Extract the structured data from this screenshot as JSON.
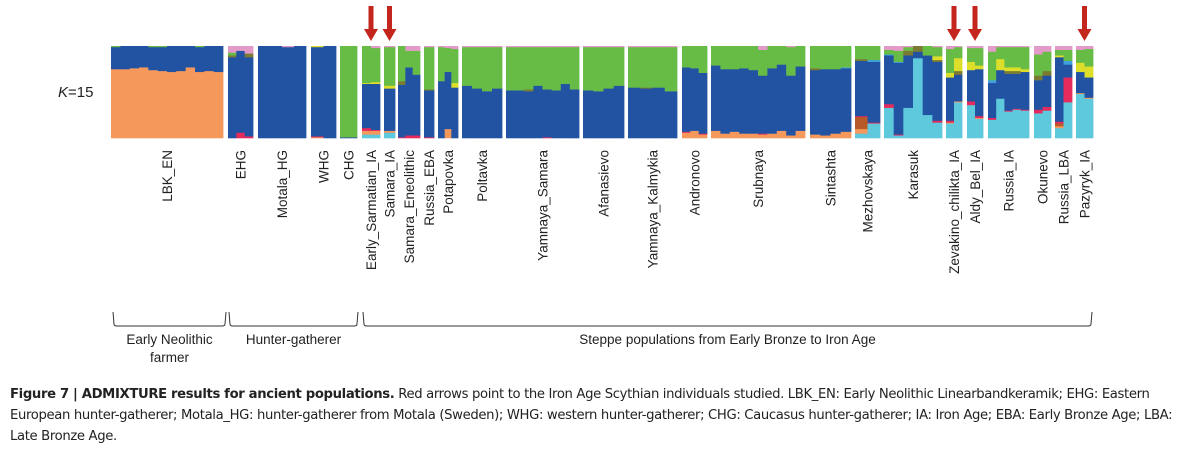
{
  "chart_data": {
    "type": "bar",
    "subtype": "stacked-admixture",
    "k_label_prefix": "K",
    "k_label_suffix": "=15",
    "k": 15,
    "ylim": [
      0,
      1
    ],
    "component_colors": {
      "orange": "#f5985c",
      "blue": "#2253a3",
      "green": "#67bc45",
      "pink": "#e29ac8",
      "olive": "#7a7a32",
      "yellow": "#dcde2a",
      "red": "#e52a5c",
      "cyan": "#5ec8dc",
      "brown": "#b85a28",
      "lightblue": "#3fa0e0"
    },
    "component_order": [
      "cyan",
      "orange",
      "brown",
      "red",
      "blue",
      "olive",
      "yellow",
      "green",
      "pink"
    ],
    "arrow_color": "#c4261d",
    "populations": [
      {
        "name": "LBK_EN",
        "arrow": false,
        "individuals": [
          {
            "orange": 0.75,
            "blue": 0.24,
            "green": 0.01
          },
          {
            "orange": 0.75,
            "blue": 0.25
          },
          {
            "orange": 0.76,
            "blue": 0.24
          },
          {
            "orange": 0.77,
            "blue": 0.23
          },
          {
            "orange": 0.74,
            "blue": 0.25,
            "green": 0.01
          },
          {
            "orange": 0.73,
            "blue": 0.26,
            "green": 0.01
          },
          {
            "orange": 0.72,
            "blue": 0.28
          },
          {
            "orange": 0.73,
            "blue": 0.27
          },
          {
            "orange": 0.77,
            "blue": 0.23
          },
          {
            "orange": 0.72,
            "blue": 0.27,
            "green": 0.01
          },
          {
            "orange": 0.73,
            "blue": 0.27
          },
          {
            "orange": 0.72,
            "blue": 0.28
          }
        ]
      },
      {
        "name": "EHG",
        "arrow": false,
        "individuals": [
          {
            "red": 0.0,
            "blue": 0.88,
            "olive": 0.02,
            "green": 0.03,
            "pink": 0.07
          },
          {
            "red": 0.06,
            "blue": 0.89,
            "pink": 0.05
          },
          {
            "red": 0.02,
            "blue": 0.86,
            "olive": 0.04,
            "pink": 0.08
          }
        ]
      },
      {
        "name": "Motala_HG",
        "arrow": false,
        "individuals": [
          {
            "blue": 1.0
          },
          {
            "blue": 1.0
          },
          {
            "blue": 0.99,
            "pink": 0.01
          },
          {
            "blue": 1.0
          }
        ]
      },
      {
        "name": "WHG",
        "arrow": false,
        "individuals": [
          {
            "red": 0.01,
            "yellow": 0.01,
            "orange": 0.01,
            "blue": 0.97
          },
          {
            "blue": 1.0
          }
        ]
      },
      {
        "name": "CHG",
        "arrow": false,
        "individuals": [
          {
            "blue": 0.01,
            "green": 0.99
          },
          {
            "blue": 0.01,
            "green": 0.99
          }
        ]
      },
      {
        "name": "Early_Sarmatian_IA",
        "arrow": true,
        "individuals": [
          {
            "cyan": 0.04,
            "orange": 0.04,
            "red": 0.03,
            "blue": 0.48,
            "yellow": 0.01,
            "green": 0.4
          },
          {
            "cyan": 0.04,
            "orange": 0.04,
            "red": 0.01,
            "blue": 0.5,
            "yellow": 0.02,
            "green": 0.37,
            "pink": 0.02
          }
        ]
      },
      {
        "name": "Samara_IA",
        "arrow": true,
        "individuals": [
          {
            "cyan": 0.06,
            "orange": 0.02,
            "blue": 0.46,
            "yellow": 0.03,
            "green": 0.42,
            "pink": 0.01
          }
        ]
      },
      {
        "name": "Samara_Eneolithic",
        "arrow": false,
        "individuals": [
          {
            "red": 0.01,
            "blue": 0.57,
            "olive": 0.04,
            "green": 0.38
          },
          {
            "red": 0.03,
            "blue": 0.74,
            "green": 0.18,
            "pink": 0.05
          },
          {
            "red": 0.03,
            "blue": 0.66,
            "green": 0.26,
            "pink": 0.05
          }
        ]
      },
      {
        "name": "Russia_EBA",
        "arrow": false,
        "individuals": [
          {
            "red": 0.01,
            "blue": 0.51,
            "olive": 0.01,
            "green": 0.46,
            "pink": 0.01
          }
        ]
      },
      {
        "name": "Potapovka",
        "arrow": false,
        "individuals": [
          {
            "blue": 0.62,
            "green": 0.37,
            "pink": 0.01
          },
          {
            "orange": 0.1,
            "blue": 0.62,
            "green": 0.26,
            "pink": 0.02
          },
          {
            "yellow": 0.05,
            "blue": 0.55,
            "green": 0.37,
            "pink": 0.03
          }
        ]
      },
      {
        "name": "Poltavka",
        "arrow": false,
        "individuals": [
          {
            "blue": 0.57,
            "green": 0.42,
            "pink": 0.01
          },
          {
            "blue": 0.54,
            "green": 0.45,
            "pink": 0.01
          },
          {
            "blue": 0.51,
            "green": 0.48,
            "pink": 0.01
          },
          {
            "blue": 0.54,
            "green": 0.45,
            "pink": 0.01
          }
        ]
      },
      {
        "name": "Yamnaya_Samara",
        "arrow": false,
        "individuals": [
          {
            "blue": 0.52,
            "green": 0.47,
            "pink": 0.01
          },
          {
            "blue": 0.52,
            "green": 0.47,
            "pink": 0.01
          },
          {
            "blue": 0.51,
            "olive": 0.02,
            "green": 0.46,
            "pink": 0.01
          },
          {
            "blue": 0.57,
            "green": 0.42,
            "pink": 0.01
          },
          {
            "red": 0.01,
            "blue": 0.52,
            "green": 0.46,
            "pink": 0.01
          },
          {
            "blue": 0.52,
            "green": 0.47,
            "pink": 0.01
          },
          {
            "blue": 0.59,
            "green": 0.4,
            "pink": 0.01
          },
          {
            "blue": 0.53,
            "green": 0.46,
            "pink": 0.01
          }
        ]
      },
      {
        "name": "Afanasievo",
        "arrow": false,
        "individuals": [
          {
            "blue": 0.52,
            "green": 0.47,
            "pink": 0.01
          },
          {
            "blue": 0.51,
            "green": 0.48,
            "pink": 0.01
          },
          {
            "blue": 0.54,
            "green": 0.45,
            "pink": 0.01
          },
          {
            "blue": 0.57,
            "green": 0.42,
            "pink": 0.01
          }
        ]
      },
      {
        "name": "Yamnaya_Kalmykia",
        "arrow": false,
        "individuals": [
          {
            "blue": 0.55,
            "green": 0.44,
            "pink": 0.01
          },
          {
            "blue": 0.54,
            "olive": 0.01,
            "green": 0.44,
            "pink": 0.01
          },
          {
            "blue": 0.55,
            "green": 0.44,
            "pink": 0.01
          },
          {
            "blue": 0.51,
            "green": 0.48,
            "pink": 0.01
          }
        ]
      },
      {
        "name": "Andronovo",
        "arrow": false,
        "individuals": [
          {
            "orange": 0.06,
            "red": 0.01,
            "blue": 0.7,
            "green": 0.23
          },
          {
            "orange": 0.08,
            "blue": 0.68,
            "green": 0.24
          },
          {
            "orange": 0.04,
            "red": 0.01,
            "blue": 0.66,
            "green": 0.29
          }
        ]
      },
      {
        "name": "Srubnaya",
        "arrow": false,
        "individuals": [
          {
            "orange": 0.08,
            "blue": 0.71,
            "green": 0.21
          },
          {
            "orange": 0.05,
            "blue": 0.7,
            "green": 0.25
          },
          {
            "orange": 0.07,
            "blue": 0.68,
            "green": 0.25
          },
          {
            "orange": 0.05,
            "blue": 0.71,
            "green": 0.24
          },
          {
            "orange": 0.05,
            "blue": 0.69,
            "green": 0.26
          },
          {
            "orange": 0.04,
            "red": 0.01,
            "blue": 0.63,
            "green": 0.28,
            "pink": 0.04
          },
          {
            "orange": 0.05,
            "blue": 0.71,
            "green": 0.24
          },
          {
            "orange": 0.08,
            "blue": 0.72,
            "green": 0.2
          },
          {
            "orange": 0.03,
            "blue": 0.65,
            "green": 0.31,
            "pink": 0.01
          },
          {
            "orange": 0.08,
            "blue": 0.7,
            "green": 0.22
          }
        ]
      },
      {
        "name": "Sintashta",
        "arrow": false,
        "individuals": [
          {
            "orange": 0.04,
            "blue": 0.7,
            "olive": 0.02,
            "green": 0.24
          },
          {
            "orange": 0.03,
            "blue": 0.72,
            "green": 0.25
          },
          {
            "orange": 0.05,
            "blue": 0.7,
            "green": 0.25
          },
          {
            "orange": 0.07,
            "blue": 0.69,
            "lightblue": 0.01,
            "green": 0.23
          }
        ]
      },
      {
        "name": "Mezhovskaya",
        "arrow": false,
        "individuals": [
          {
            "cyan": 0.05,
            "orange": 0.05,
            "brown": 0.13,
            "red": 0.01,
            "blue": 0.6,
            "olive": 0.02,
            "green": 0.14
          },
          {
            "cyan": 0.16,
            "red": 0.01,
            "blue": 0.66,
            "lightblue": 0.02,
            "green": 0.15
          }
        ]
      },
      {
        "name": "Karasuk",
        "arrow": false,
        "individuals": [
          {
            "cyan": 0.33,
            "red": 0.04,
            "blue": 0.53,
            "lightblue": 0.01,
            "green": 0.05,
            "pink": 0.04
          },
          {
            "cyan": 0.03,
            "red": 0.01,
            "blue": 0.78,
            "lightblue": 0.01,
            "green": 0.12,
            "pink": 0.05
          },
          {
            "cyan": 0.33,
            "blue": 0.57,
            "olive": 0.05,
            "green": 0.04,
            "pink": 0.01
          },
          {
            "cyan": 0.87,
            "blue": 0.07,
            "olive": 0.06,
            "yellow": 0.0
          },
          {
            "cyan": 0.25,
            "blue": 0.64,
            "green": 0.1
          },
          {
            "cyan": 0.17,
            "red": 0.02,
            "blue": 0.64,
            "yellow": 0.04,
            "olive": 0.02,
            "green": 0.1,
            "pink": 0.01
          }
        ]
      },
      {
        "name": "Zevakino_chilikta_IA",
        "arrow": true,
        "individuals": [
          {
            "cyan": 0.16,
            "orange": 0.01,
            "red": 0.02,
            "blue": 0.47,
            "yellow": 0.05,
            "green": 0.26,
            "pink": 0.03
          },
          {
            "cyan": 0.39,
            "orange": 0.01,
            "blue": 0.29,
            "olive": 0.04,
            "yellow": 0.14,
            "green": 0.12,
            "pink": 0.01
          }
        ]
      },
      {
        "name": "Aldy_Bel_IA",
        "arrow": true,
        "individuals": [
          {
            "cyan": 0.36,
            "red": 0.04,
            "blue": 0.34,
            "yellow": 0.09,
            "green": 0.15,
            "pink": 0.02
          },
          {
            "cyan": 0.21,
            "orange": 0.01,
            "red": 0.02,
            "blue": 0.51,
            "yellow": 0.04,
            "green": 0.19,
            "pink": 0.02
          }
        ]
      },
      {
        "name": "Russia_IA",
        "arrow": false,
        "individuals": [
          {
            "cyan": 0.2,
            "red": 0.02,
            "blue": 0.38,
            "lightblue": 0.03,
            "green": 0.31,
            "pink": 0.06
          },
          {
            "cyan": 0.43,
            "blue": 0.31,
            "yellow": 0.12,
            "green": 0.13,
            "pink": 0.01
          },
          {
            "cyan": 0.29,
            "red": 0.01,
            "blue": 0.4,
            "olive": 0.03,
            "yellow": 0.04,
            "green": 0.22,
            "pink": 0.01
          },
          {
            "cyan": 0.31,
            "red": 0.01,
            "blue": 0.38,
            "olive": 0.03,
            "yellow": 0.04,
            "green": 0.22,
            "pink": 0.01
          },
          {
            "cyan": 0.3,
            "red": 0.01,
            "blue": 0.41,
            "yellow": 0.03,
            "green": 0.24,
            "pink": 0.01
          }
        ]
      },
      {
        "name": "Okunevo",
        "arrow": false,
        "individuals": [
          {
            "cyan": 0.27,
            "red": 0.04,
            "blue": 0.32,
            "olive": 0.05,
            "green": 0.23,
            "pink": 0.09
          },
          {
            "cyan": 0.3,
            "red": 0.04,
            "blue": 0.34,
            "olive": 0.05,
            "green": 0.21,
            "pink": 0.06
          }
        ]
      },
      {
        "name": "Russia_LBA",
        "arrow": false,
        "individuals": [
          {
            "cyan": 0.11,
            "orange": 0.02,
            "brown": 0.03,
            "red": 0.02,
            "blue": 0.7,
            "yellow": 0.02,
            "green": 0.06,
            "pink": 0.04
          },
          {
            "cyan": 0.39,
            "blue": 0.1,
            "red": 0.27,
            "lightblue": 0.04,
            "blue2": 0.04,
            "green": 0.12,
            "pink": 0.04
          }
        ]
      },
      {
        "name": "Pazyryk_IA",
        "arrow": true,
        "individuals": [
          {
            "cyan": 0.48,
            "orange": 0.01,
            "blue": 0.23,
            "yellow": 0.1,
            "green": 0.14,
            "pink": 0.04
          },
          {
            "cyan": 0.43,
            "orange": 0.01,
            "blue": 0.22,
            "yellow": 0.12,
            "green": 0.19,
            "pink": 0.03
          }
        ]
      }
    ],
    "groups": [
      {
        "label_lines": [
          "Early Neolithic",
          "farmer"
        ],
        "from": "LBK_EN",
        "to": "LBK_EN"
      },
      {
        "label_lines": [
          "Hunter-gatherer"
        ],
        "from": "EHG",
        "to": "CHG"
      },
      {
        "label_lines": [
          "Steppe populations from Early Bronze to Iron Age"
        ],
        "from": "Early_Sarmatian_IA",
        "to": "Pazyryk_IA"
      }
    ]
  },
  "caption": {
    "figure_label": "Figure 7 | ADMIXTURE results for ancient populations.",
    "text": " Red arrows point to the Iron Age Scythian individuals studied. LBK_EN: Early Neolithic Linearbandkeramik; EHG: Eastern European hunter-gatherer; Motala_HG: hunter-gatherer from Motala (Sweden); WHG: western hunter-gatherer; CHG: Caucasus hunter-gatherer; IA: Iron Age; EBA: Early Bronze Age; LBA: Late Bronze Age."
  }
}
